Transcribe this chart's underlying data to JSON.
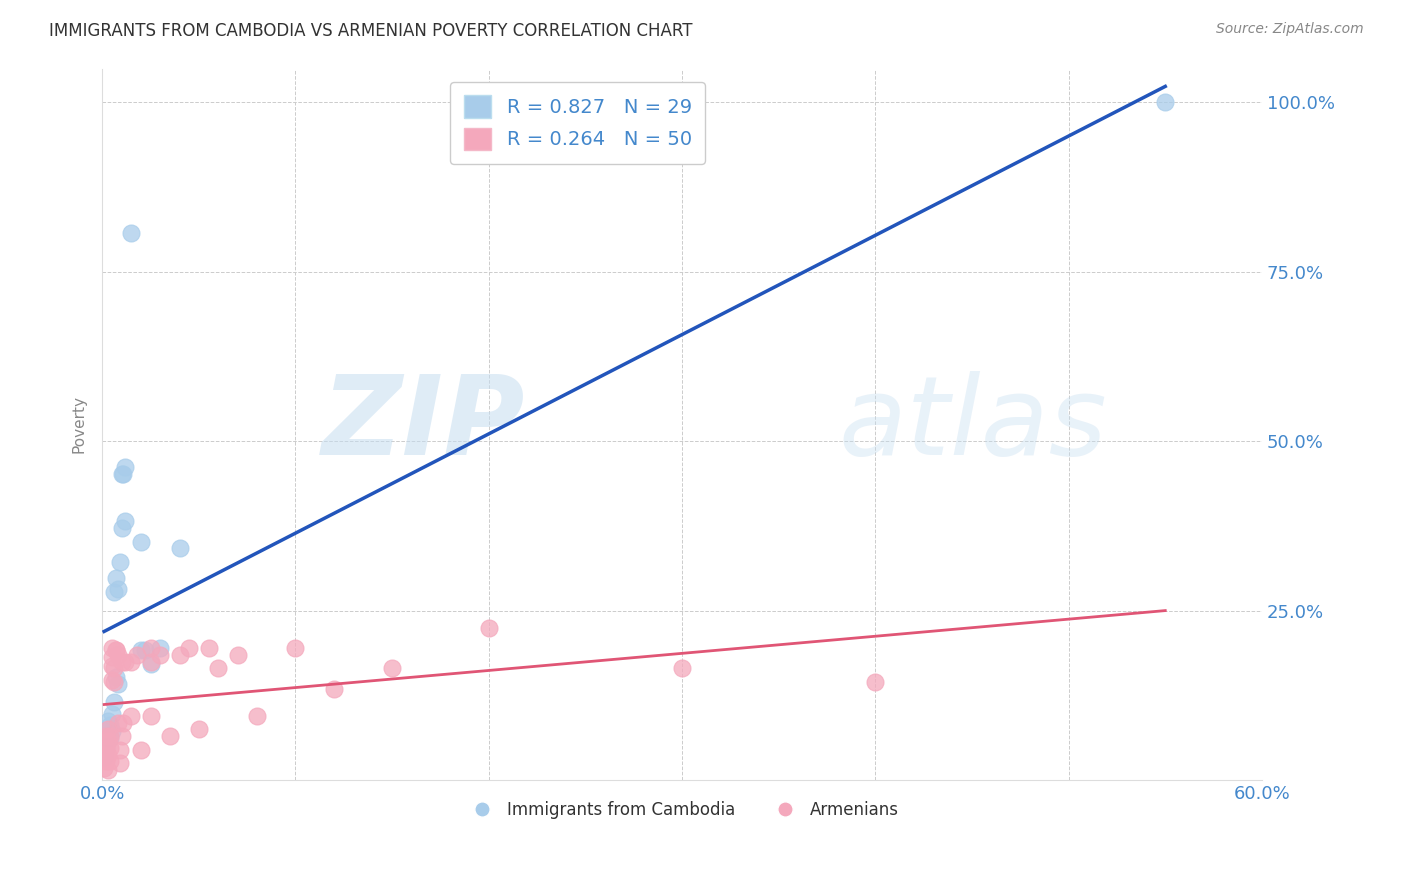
{
  "title": "IMMIGRANTS FROM CAMBODIA VS ARMENIAN POVERTY CORRELATION CHART",
  "source_text": "Source: ZipAtlas.com",
  "ylabel_left": "Poverty",
  "right_yticklabels": [
    "",
    "25.0%",
    "50.0%",
    "75.0%",
    "100.0%"
  ],
  "legend_blue_label": "R = 0.827   N = 29",
  "legend_pink_label": "R = 0.264   N = 50",
  "bottom_legend_blue": "Immigrants from Cambodia",
  "bottom_legend_pink": "Armenians",
  "watermark_zip": "ZIP",
  "watermark_atlas": "atlas",
  "blue_color": "#a8ccea",
  "pink_color": "#f4a8bc",
  "blue_line_color": "#2255bb",
  "pink_line_color": "#e05575",
  "blue_scatter": [
    [
      0.001,
      0.035
    ],
    [
      0.002,
      0.048
    ],
    [
      0.002,
      0.062
    ],
    [
      0.003,
      0.072
    ],
    [
      0.003,
      0.088
    ],
    [
      0.004,
      0.062
    ],
    [
      0.004,
      0.082
    ],
    [
      0.005,
      0.098
    ],
    [
      0.005,
      0.072
    ],
    [
      0.006,
      0.115
    ],
    [
      0.006,
      0.278
    ],
    [
      0.007,
      0.298
    ],
    [
      0.007,
      0.152
    ],
    [
      0.008,
      0.142
    ],
    [
      0.008,
      0.282
    ],
    [
      0.009,
      0.322
    ],
    [
      0.01,
      0.372
    ],
    [
      0.01,
      0.452
    ],
    [
      0.011,
      0.452
    ],
    [
      0.012,
      0.382
    ],
    [
      0.012,
      0.462
    ],
    [
      0.015,
      0.808
    ],
    [
      0.02,
      0.352
    ],
    [
      0.02,
      0.192
    ],
    [
      0.022,
      0.192
    ],
    [
      0.025,
      0.172
    ],
    [
      0.03,
      0.195
    ],
    [
      0.04,
      0.342
    ],
    [
      0.55,
      1.0
    ]
  ],
  "pink_scatter": [
    [
      0.001,
      0.018
    ],
    [
      0.001,
      0.038
    ],
    [
      0.002,
      0.028
    ],
    [
      0.002,
      0.048
    ],
    [
      0.002,
      0.065
    ],
    [
      0.003,
      0.038
    ],
    [
      0.003,
      0.058
    ],
    [
      0.003,
      0.075
    ],
    [
      0.003,
      0.015
    ],
    [
      0.004,
      0.048
    ],
    [
      0.004,
      0.028
    ],
    [
      0.004,
      0.065
    ],
    [
      0.005,
      0.148
    ],
    [
      0.005,
      0.168
    ],
    [
      0.005,
      0.195
    ],
    [
      0.005,
      0.182
    ],
    [
      0.006,
      0.165
    ],
    [
      0.006,
      0.145
    ],
    [
      0.007,
      0.192
    ],
    [
      0.007,
      0.192
    ],
    [
      0.008,
      0.185
    ],
    [
      0.008,
      0.085
    ],
    [
      0.009,
      0.025
    ],
    [
      0.009,
      0.045
    ],
    [
      0.01,
      0.175
    ],
    [
      0.01,
      0.065
    ],
    [
      0.011,
      0.085
    ],
    [
      0.012,
      0.175
    ],
    [
      0.015,
      0.175
    ],
    [
      0.015,
      0.095
    ],
    [
      0.018,
      0.185
    ],
    [
      0.02,
      0.045
    ],
    [
      0.025,
      0.195
    ],
    [
      0.025,
      0.175
    ],
    [
      0.025,
      0.095
    ],
    [
      0.03,
      0.185
    ],
    [
      0.035,
      0.065
    ],
    [
      0.04,
      0.185
    ],
    [
      0.045,
      0.195
    ],
    [
      0.05,
      0.075
    ],
    [
      0.055,
      0.195
    ],
    [
      0.06,
      0.165
    ],
    [
      0.07,
      0.185
    ],
    [
      0.08,
      0.095
    ],
    [
      0.1,
      0.195
    ],
    [
      0.12,
      0.135
    ],
    [
      0.15,
      0.165
    ],
    [
      0.2,
      0.225
    ],
    [
      0.3,
      0.165
    ],
    [
      0.4,
      0.145
    ]
  ],
  "xlim": [
    0.0,
    0.6
  ],
  "ylim": [
    0.0,
    1.05
  ],
  "figsize": [
    14.06,
    8.92
  ],
  "dpi": 100,
  "background_color": "#ffffff",
  "grid_color": "#cccccc",
  "title_color": "#333333",
  "title_fontsize": 12,
  "axis_label_color": "#888888",
  "tick_color_blue": "#4488cc",
  "source_fontsize": 10,
  "source_color": "#888888"
}
